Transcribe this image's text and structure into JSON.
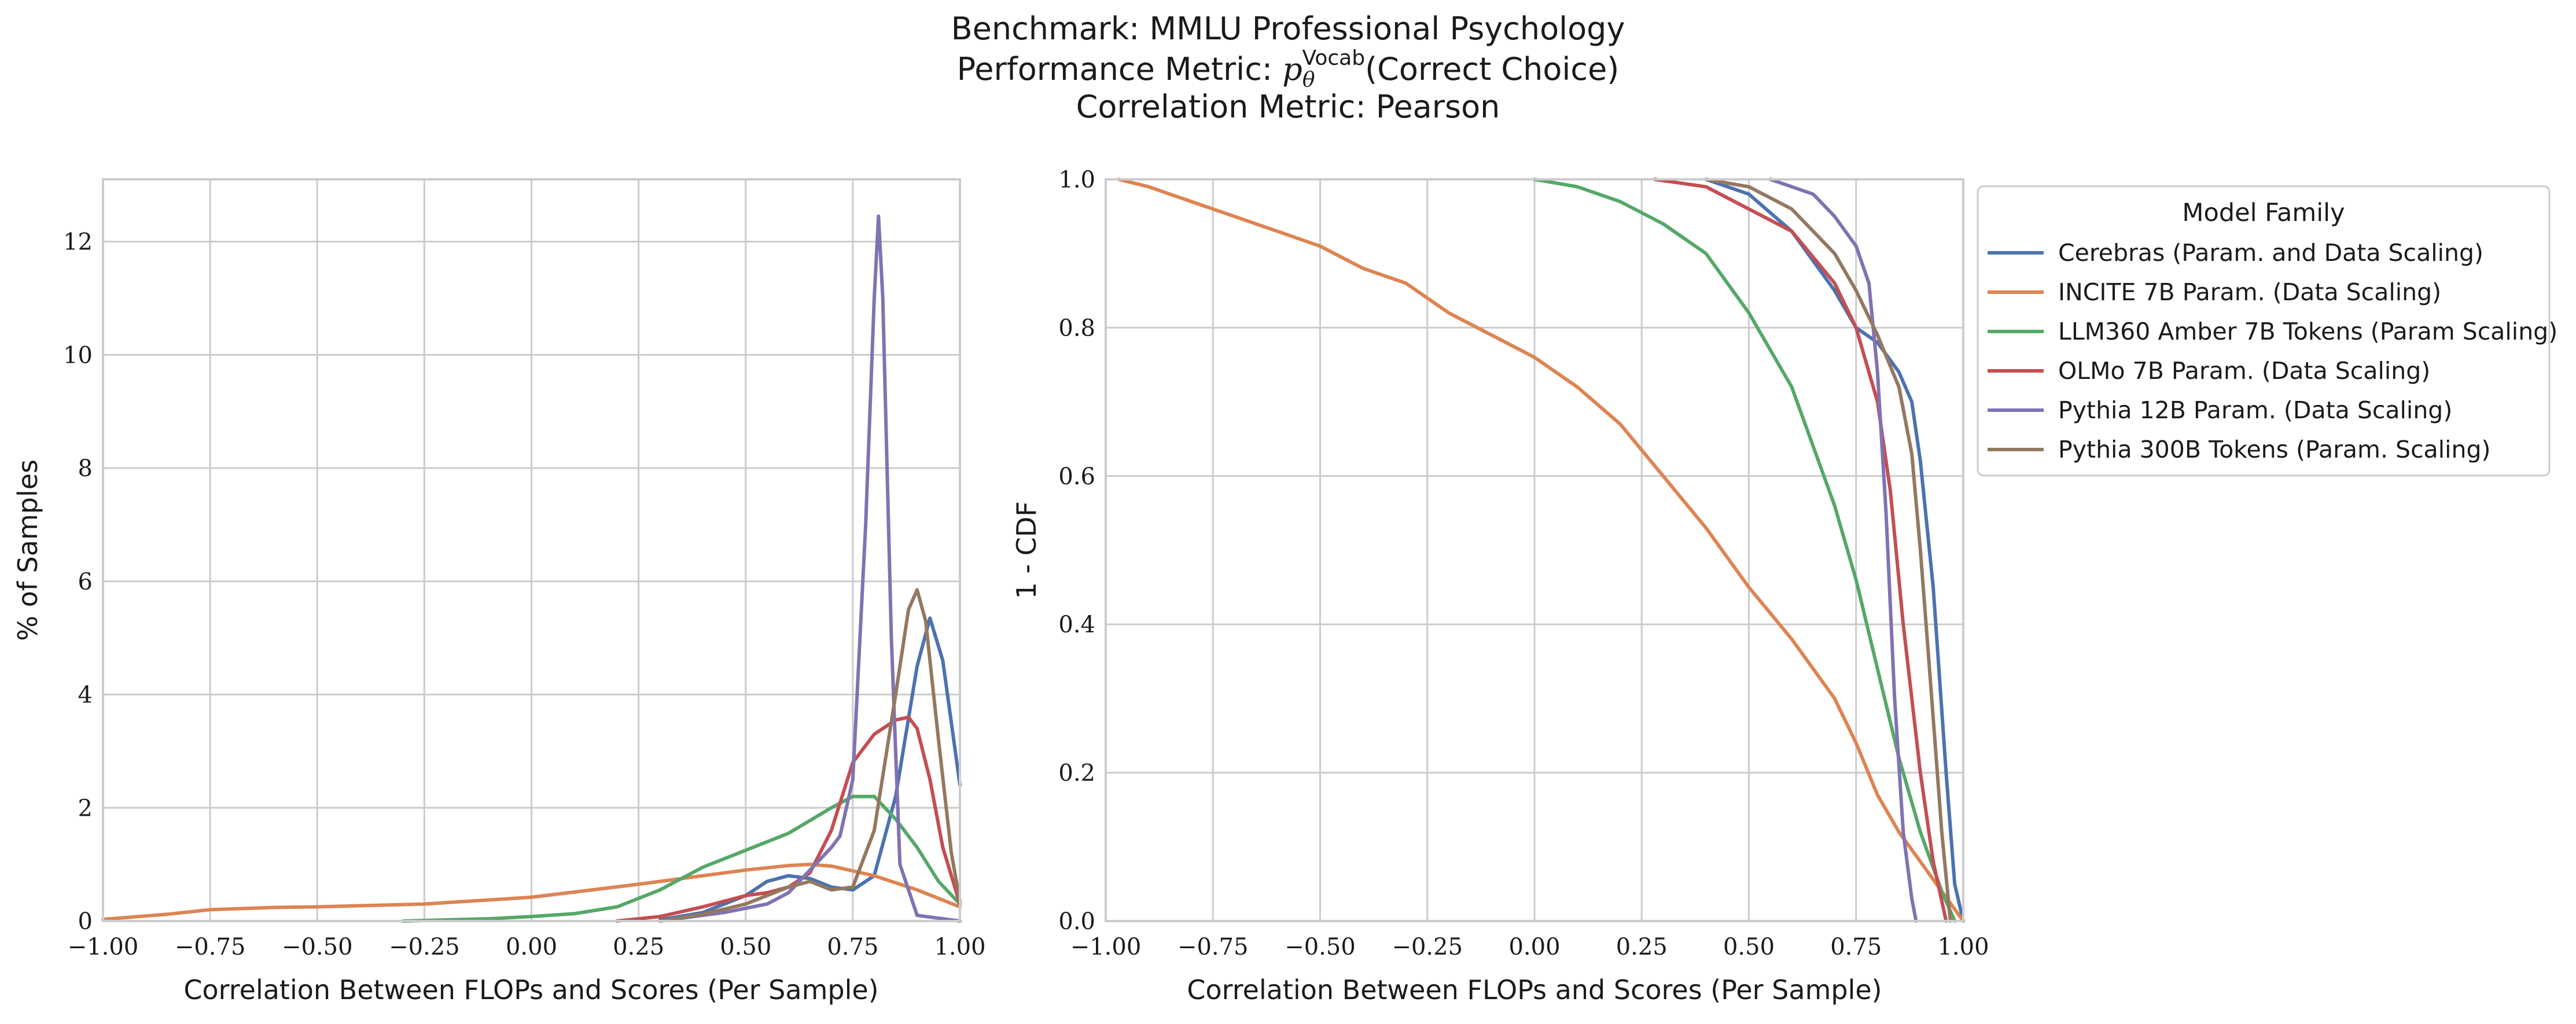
{
  "title": {
    "line1": "Benchmark: MMLU Professional Psychology",
    "line2_prefix": "Performance Metric: ",
    "line2_sym": "p",
    "line2_sub": "θ",
    "line2_sup": "Vocab",
    "line2_suffix": "(Correct Choice)",
    "line3": "Correlation Metric: Pearson"
  },
  "colors": {
    "Cerebras": "#4c72b0",
    "INCITE": "#dd8452",
    "LLM360": "#55a868",
    "OLMo": "#c44e52",
    "Pythia12B": "#8172b3",
    "Pythia300B": "#937860"
  },
  "legend": {
    "title": "Model Family",
    "entries": [
      {
        "key": "Cerebras",
        "label": "Cerebras (Param. and Data Scaling)"
      },
      {
        "key": "INCITE",
        "label": "INCITE 7B Param. (Data Scaling)"
      },
      {
        "key": "LLM360",
        "label": "LLM360 Amber 7B Tokens (Param Scaling)"
      },
      {
        "key": "OLMo",
        "label": "OLMo 7B Param. (Data Scaling)"
      },
      {
        "key": "Pythia12B",
        "label": "Pythia 12B Param. (Data Scaling)"
      },
      {
        "key": "Pythia300B",
        "label": "Pythia 300B Tokens (Param. Scaling)"
      }
    ]
  },
  "chart_data": [
    {
      "type": "line",
      "subtype": "kde",
      "xlabel": "Correlation Between FLOPs and Scores (Per Sample)",
      "ylabel": "% of Samples",
      "xlim": [
        -1.0,
        1.0
      ],
      "ylim": [
        0,
        13.1
      ],
      "xticks": [
        "−1.00",
        "−0.75",
        "−0.50",
        "−0.25",
        "0.00",
        "0.25",
        "0.50",
        "0.75",
        "1.00"
      ],
      "yticks": [
        "0",
        "2",
        "4",
        "6",
        "8",
        "10",
        "12"
      ],
      "series": [
        {
          "key": "Cerebras",
          "x": [
            0.3,
            0.4,
            0.5,
            0.55,
            0.6,
            0.65,
            0.7,
            0.75,
            0.8,
            0.85,
            0.9,
            0.93,
            0.96,
            1.0
          ],
          "y": [
            0.02,
            0.15,
            0.45,
            0.7,
            0.8,
            0.75,
            0.6,
            0.55,
            0.8,
            2.2,
            4.5,
            5.35,
            4.6,
            2.4
          ]
        },
        {
          "key": "INCITE",
          "x": [
            -1.0,
            -0.85,
            -0.75,
            -0.6,
            -0.5,
            -0.25,
            0.0,
            0.25,
            0.5,
            0.6,
            0.65,
            0.7,
            0.8,
            0.9,
            1.0
          ],
          "y": [
            0.03,
            0.12,
            0.2,
            0.24,
            0.25,
            0.3,
            0.42,
            0.65,
            0.9,
            0.98,
            1.0,
            0.97,
            0.8,
            0.55,
            0.25
          ]
        },
        {
          "key": "LLM360",
          "x": [
            -0.3,
            -0.1,
            0.0,
            0.1,
            0.2,
            0.3,
            0.4,
            0.5,
            0.6,
            0.7,
            0.75,
            0.8,
            0.85,
            0.9,
            0.95,
            1.0
          ],
          "y": [
            0.0,
            0.04,
            0.08,
            0.13,
            0.25,
            0.55,
            0.95,
            1.25,
            1.55,
            2.0,
            2.2,
            2.2,
            1.8,
            1.3,
            0.7,
            0.3
          ]
        },
        {
          "key": "OLMo",
          "x": [
            0.2,
            0.3,
            0.4,
            0.5,
            0.55,
            0.6,
            0.65,
            0.7,
            0.75,
            0.8,
            0.85,
            0.88,
            0.9,
            0.93,
            0.96,
            1.0
          ],
          "y": [
            0.0,
            0.08,
            0.25,
            0.45,
            0.5,
            0.6,
            0.85,
            1.6,
            2.8,
            3.3,
            3.55,
            3.6,
            3.4,
            2.5,
            1.3,
            0.3
          ]
        },
        {
          "key": "Pythia12B",
          "x": [
            0.3,
            0.45,
            0.55,
            0.6,
            0.65,
            0.7,
            0.72,
            0.75,
            0.78,
            0.8,
            0.81,
            0.82,
            0.84,
            0.86,
            0.9,
            1.0
          ],
          "y": [
            0.0,
            0.15,
            0.3,
            0.5,
            0.9,
            1.3,
            1.5,
            2.5,
            7.0,
            11.0,
            12.45,
            11.0,
            5.0,
            1.0,
            0.1,
            0.0
          ]
        },
        {
          "key": "Pythia300B",
          "x": [
            0.3,
            0.4,
            0.5,
            0.6,
            0.65,
            0.7,
            0.75,
            0.8,
            0.85,
            0.88,
            0.9,
            0.92,
            0.95,
            0.98,
            1.0
          ],
          "y": [
            0.0,
            0.12,
            0.3,
            0.6,
            0.7,
            0.55,
            0.6,
            1.6,
            4.0,
            5.5,
            5.85,
            5.3,
            3.2,
            1.2,
            0.35
          ]
        }
      ]
    },
    {
      "type": "line",
      "subtype": "complementary-cdf",
      "xlabel": "Correlation Between FLOPs and Scores (Per Sample)",
      "ylabel": "1 - CDF",
      "xlim": [
        -1.0,
        1.0
      ],
      "ylim": [
        0.0,
        1.0
      ],
      "xticks": [
        "−1.00",
        "−0.75",
        "−0.50",
        "−0.25",
        "0.00",
        "0.25",
        "0.50",
        "0.75",
        "1.00"
      ],
      "yticks": [
        "0.0",
        "0.2",
        "0.4",
        "0.6",
        "0.8",
        "1.0"
      ],
      "series": [
        {
          "key": "Cerebras",
          "x": [
            0.4,
            0.5,
            0.6,
            0.7,
            0.75,
            0.8,
            0.85,
            0.88,
            0.9,
            0.93,
            0.96,
            0.98,
            1.0
          ],
          "y": [
            1.0,
            0.98,
            0.93,
            0.85,
            0.8,
            0.78,
            0.74,
            0.7,
            0.62,
            0.45,
            0.2,
            0.05,
            0.0
          ]
        },
        {
          "key": "INCITE",
          "x": [
            -0.97,
            -0.9,
            -0.8,
            -0.7,
            -0.6,
            -0.5,
            -0.4,
            -0.3,
            -0.2,
            -0.1,
            0.0,
            0.1,
            0.2,
            0.3,
            0.4,
            0.5,
            0.6,
            0.7,
            0.75,
            0.8,
            0.85,
            0.9,
            0.95,
            1.0
          ],
          "y": [
            1.0,
            0.99,
            0.97,
            0.95,
            0.93,
            0.91,
            0.88,
            0.86,
            0.82,
            0.79,
            0.76,
            0.72,
            0.67,
            0.6,
            0.53,
            0.45,
            0.38,
            0.3,
            0.24,
            0.17,
            0.12,
            0.08,
            0.04,
            0.0
          ]
        },
        {
          "key": "LLM360",
          "x": [
            0.0,
            0.1,
            0.2,
            0.3,
            0.4,
            0.5,
            0.6,
            0.7,
            0.75,
            0.8,
            0.85,
            0.9,
            0.95,
            0.98
          ],
          "y": [
            1.0,
            0.99,
            0.97,
            0.94,
            0.9,
            0.82,
            0.72,
            0.56,
            0.46,
            0.34,
            0.22,
            0.12,
            0.04,
            0.0
          ]
        },
        {
          "key": "OLMo",
          "x": [
            0.28,
            0.4,
            0.5,
            0.6,
            0.7,
            0.75,
            0.8,
            0.83,
            0.86,
            0.88,
            0.9,
            0.93,
            0.96
          ],
          "y": [
            1.0,
            0.99,
            0.96,
            0.93,
            0.86,
            0.8,
            0.7,
            0.58,
            0.4,
            0.3,
            0.2,
            0.08,
            0.0
          ]
        },
        {
          "key": "Pythia12B",
          "x": [
            0.55,
            0.6,
            0.65,
            0.7,
            0.75,
            0.78,
            0.8,
            0.82,
            0.84,
            0.86,
            0.88,
            0.89
          ],
          "y": [
            1.0,
            0.99,
            0.98,
            0.95,
            0.91,
            0.86,
            0.74,
            0.55,
            0.3,
            0.12,
            0.03,
            0.0
          ]
        },
        {
          "key": "Pythia300B",
          "x": [
            0.4,
            0.5,
            0.6,
            0.7,
            0.75,
            0.8,
            0.85,
            0.88,
            0.9,
            0.92,
            0.95,
            0.97
          ],
          "y": [
            1.0,
            0.99,
            0.96,
            0.9,
            0.85,
            0.79,
            0.72,
            0.63,
            0.5,
            0.35,
            0.12,
            0.0
          ]
        }
      ]
    }
  ]
}
